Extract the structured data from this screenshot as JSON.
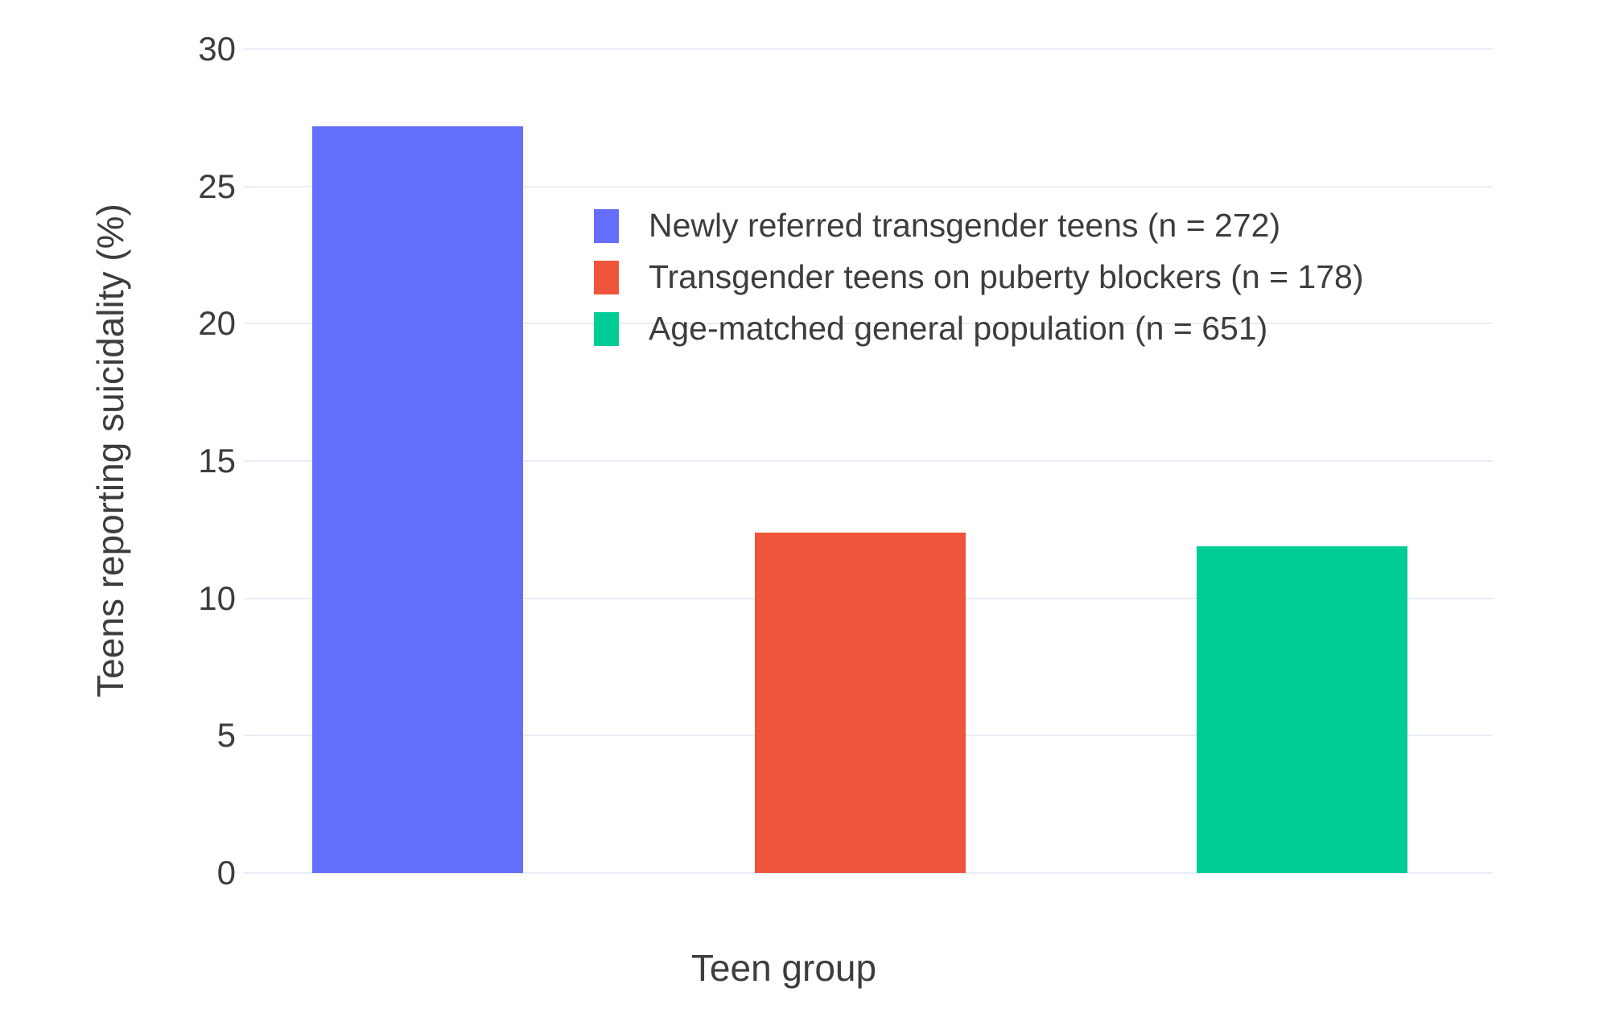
{
  "figure": {
    "background_color": "#ffffff"
  },
  "chart_data": {
    "type": "bar",
    "title": "",
    "xlabel": "Teen group",
    "ylabel": "Teens reporting suicidality (%)",
    "ylim": [
      0,
      30
    ],
    "yticks": [
      0,
      5,
      10,
      15,
      20,
      25,
      30
    ],
    "grid": true,
    "grid_color": "#E8EDF6",
    "text_color": "#3D3D3D",
    "legend_position": "inside plot, upper area right of first bar",
    "x_tick_labels": [],
    "categories": [
      "Newly referred transgender teens",
      "Transgender teens on puberty blockers",
      "Age-matched general population"
    ],
    "values": [
      27.2,
      12.4,
      11.9
    ],
    "sample_sizes": [
      272,
      178,
      651
    ],
    "groups": [
      {
        "label": "Newly referred transgender teens (n = 272)",
        "value": 27.2,
        "n": 272,
        "color": "#636EFA"
      },
      {
        "label": "Transgender teens on puberty blockers (n = 178)",
        "value": 12.4,
        "n": 178,
        "color": "#EF553B"
      },
      {
        "label": "Age-matched general population (n = 651)",
        "value": 11.9,
        "n": 651,
        "color": "#00CC96"
      }
    ]
  }
}
